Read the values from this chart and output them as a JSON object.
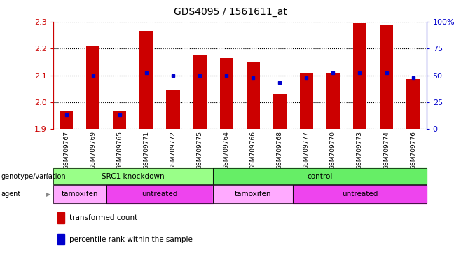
{
  "title": "GDS4095 / 1561611_at",
  "samples": [
    "GSM709767",
    "GSM709769",
    "GSM709765",
    "GSM709771",
    "GSM709772",
    "GSM709775",
    "GSM709764",
    "GSM709766",
    "GSM709768",
    "GSM709777",
    "GSM709770",
    "GSM709773",
    "GSM709774",
    "GSM709776"
  ],
  "transformed_count": [
    1.965,
    2.21,
    1.965,
    2.265,
    2.045,
    2.175,
    2.165,
    2.15,
    2.03,
    2.11,
    2.11,
    2.295,
    2.285,
    2.085
  ],
  "percentile_rank": [
    13,
    50,
    13,
    52,
    50,
    50,
    50,
    48,
    43,
    48,
    52,
    52,
    52,
    48
  ],
  "ylim_left": [
    1.9,
    2.3
  ],
  "ylim_right": [
    0,
    100
  ],
  "bar_color": "#cc0000",
  "marker_color": "#0000cc",
  "background_color": "#ffffff",
  "genotype_groups": [
    {
      "label": "SRC1 knockdown",
      "start": 0,
      "end": 6,
      "color": "#99ff88"
    },
    {
      "label": "control",
      "start": 6,
      "end": 14,
      "color": "#66ee66"
    }
  ],
  "agent_groups": [
    {
      "label": "tamoxifen",
      "start": 0,
      "end": 2,
      "color": "#ffaaff"
    },
    {
      "label": "untreated",
      "start": 2,
      "end": 6,
      "color": "#ee44ee"
    },
    {
      "label": "tamoxifen",
      "start": 6,
      "end": 9,
      "color": "#ffaaff"
    },
    {
      "label": "untreated",
      "start": 9,
      "end": 14,
      "color": "#ee44ee"
    }
  ],
  "left_yticks": [
    1.9,
    2.0,
    2.1,
    2.2,
    2.3
  ],
  "right_yticks": [
    0,
    25,
    50,
    75,
    100
  ],
  "right_yticklabels": [
    "0",
    "25",
    "50",
    "75",
    "100%"
  ],
  "left_axis_color": "#cc0000",
  "right_axis_color": "#0000cc",
  "legend_items": [
    {
      "color": "#cc0000",
      "label": "transformed count"
    },
    {
      "color": "#0000cc",
      "label": "percentile rank within the sample"
    }
  ],
  "bar_width": 0.5
}
